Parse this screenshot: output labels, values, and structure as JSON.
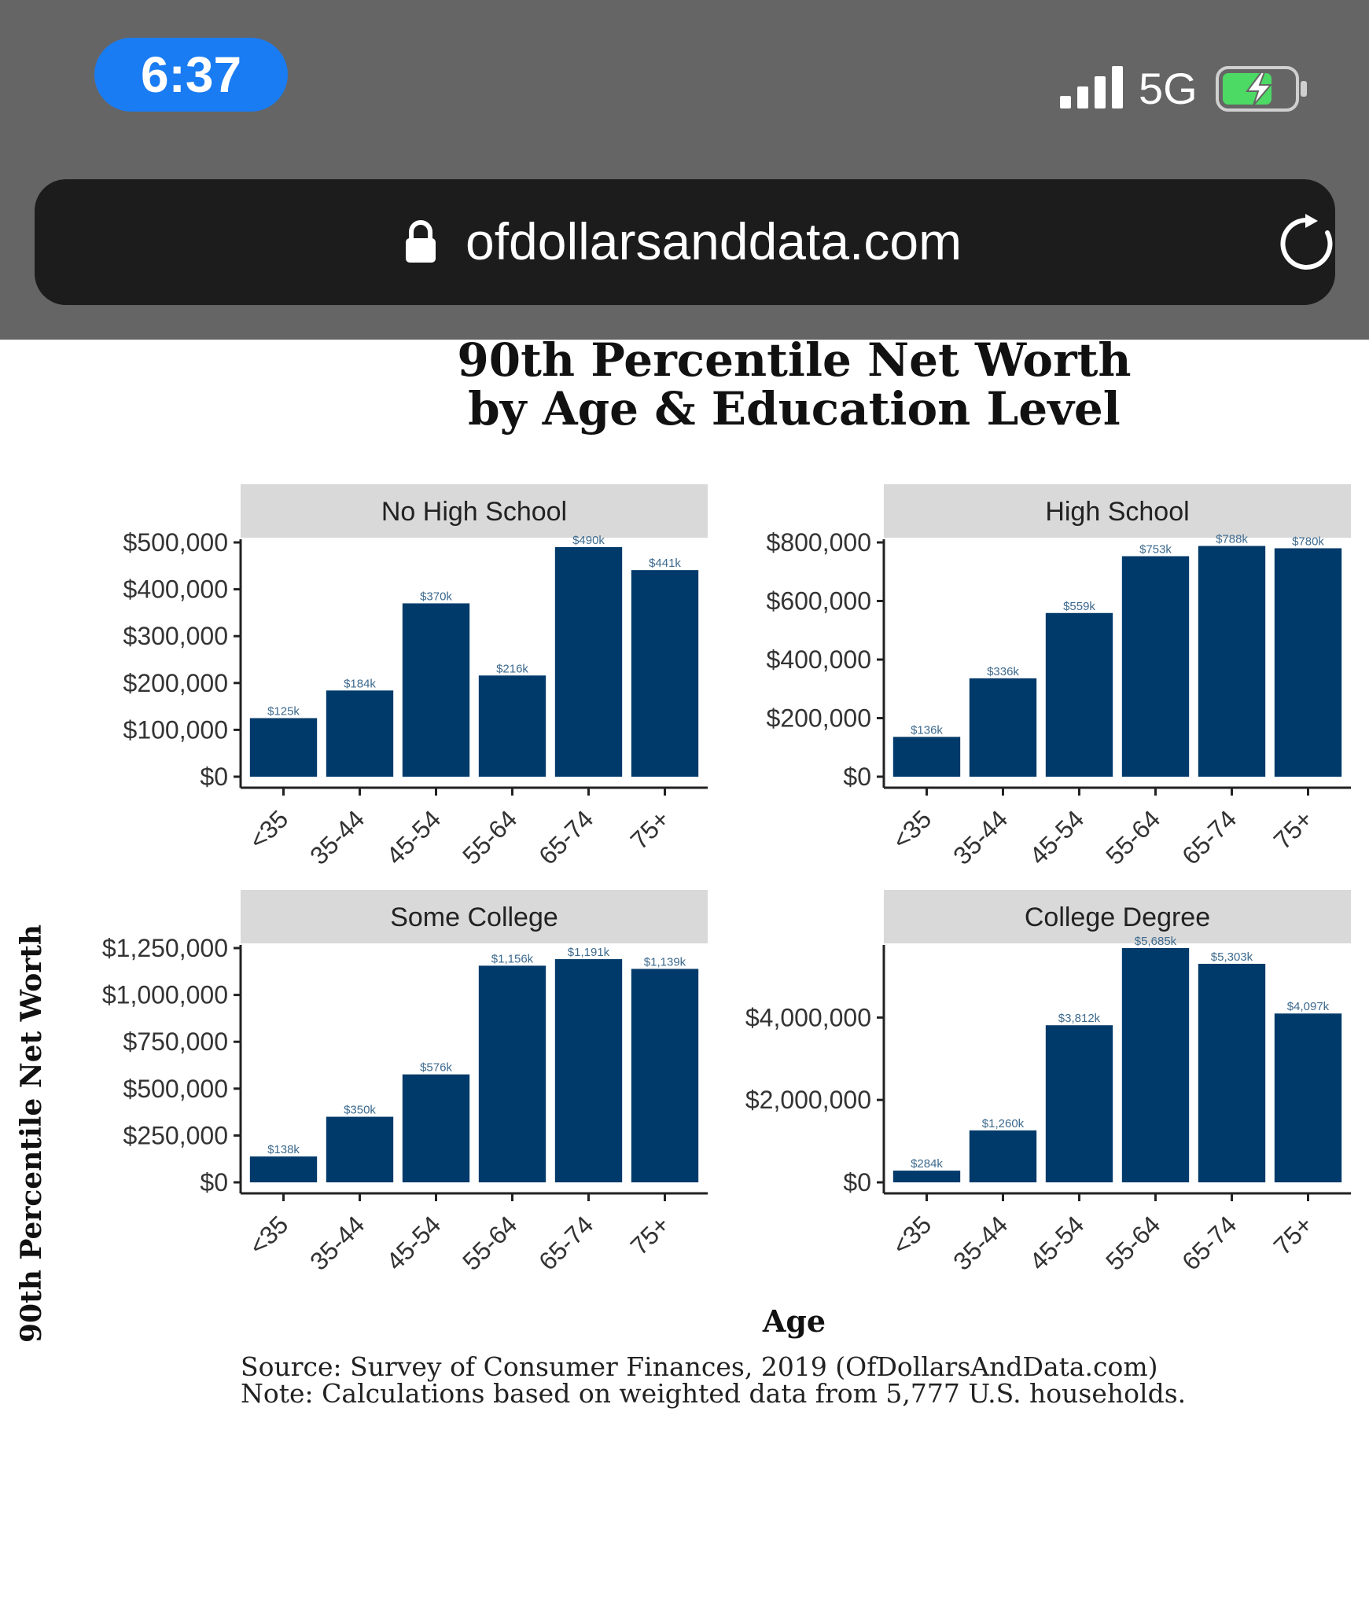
{
  "status_bar": {
    "time": "6:37",
    "network": "5G",
    "pill_color": "#1a7cf2",
    "battery_color": "#4cd964"
  },
  "browser": {
    "url": "ofdollarsanddata.com",
    "icons": [
      "lock-icon",
      "reload-icon"
    ]
  },
  "figure": {
    "title_line1": "90th Percentile Net Worth",
    "title_line2": "by Age & Education Level",
    "ylabel": "90th Percentile Net Worth",
    "xlabel": "Age",
    "source": "Source:  Survey of Consumer Finances, 2019 (OfDollarsAndData.com)",
    "note": "Note: Calculations based on weighted data from 5,777 U.S. households.",
    "bar_color": "#003a6b",
    "strip_color": "#d9d9d9",
    "label_color": "#3d6a8e"
  },
  "chart_data": [
    {
      "type": "bar",
      "title": "No High School",
      "categories": [
        "<35",
        "35-44",
        "45-54",
        "55-64",
        "65-74",
        "75+"
      ],
      "values": [
        125000,
        184000,
        370000,
        216000,
        490000,
        441000
      ],
      "value_labels": [
        "$125k",
        "$184k",
        "$370k",
        "$216k",
        "$490k",
        "$441k"
      ],
      "ylim": [
        0,
        500000
      ],
      "yticks": [
        0,
        100000,
        200000,
        300000,
        400000,
        500000
      ],
      "ytick_labels": [
        "$0",
        "$100,000",
        "$200,000",
        "$300,000",
        "$400,000",
        "$500,000"
      ]
    },
    {
      "type": "bar",
      "title": "High School",
      "categories": [
        "<35",
        "35-44",
        "45-54",
        "55-64",
        "65-74",
        "75+"
      ],
      "values": [
        136000,
        336000,
        559000,
        753000,
        788000,
        780000
      ],
      "value_labels": [
        "$136k",
        "$336k",
        "$559k",
        "$753k",
        "$788k",
        "$780k"
      ],
      "ylim": [
        0,
        800000
      ],
      "yticks": [
        0,
        200000,
        400000,
        600000,
        800000
      ],
      "ytick_labels": [
        "$0",
        "$200,000",
        "$400,000",
        "$600,000",
        "$800,000"
      ]
    },
    {
      "type": "bar",
      "title": "Some College",
      "categories": [
        "<35",
        "35-44",
        "45-54",
        "55-64",
        "65-74",
        "75+"
      ],
      "values": [
        138000,
        350000,
        576000,
        1156000,
        1191000,
        1139000
      ],
      "value_labels": [
        "$138k",
        "$350k",
        "$576k",
        "$1,156k",
        "$1,191k",
        "$1,139k"
      ],
      "ylim": [
        0,
        1250000
      ],
      "yticks": [
        0,
        250000,
        500000,
        750000,
        1000000,
        1250000
      ],
      "ytick_labels": [
        "$0",
        "$250,000",
        "$500,000",
        "$750,000",
        "$1,000,000",
        "$1,250,000"
      ]
    },
    {
      "type": "bar",
      "title": "College Degree",
      "categories": [
        "<35",
        "35-44",
        "45-54",
        "55-64",
        "65-74",
        "75+"
      ],
      "values": [
        284000,
        1260000,
        3812000,
        5685000,
        5303000,
        4097000
      ],
      "value_labels": [
        "$284k",
        "$1,260k",
        "$3,812k",
        "$5,685k",
        "$5,303k",
        "$4,097k"
      ],
      "ylim": [
        0,
        5685000
      ],
      "yticks": [
        0,
        2000000,
        4000000
      ],
      "ytick_labels": [
        "$0",
        "$2,000,000",
        "$4,000,000"
      ]
    }
  ]
}
